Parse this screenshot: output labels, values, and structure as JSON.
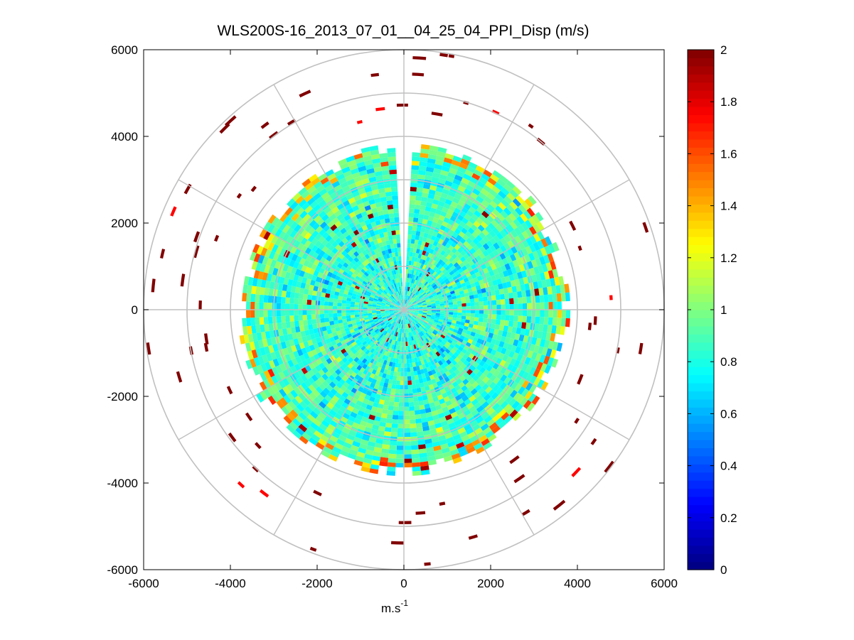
{
  "chart_data": {
    "type": "heatmap",
    "subtype": "polar-ppi",
    "title": "WLS200S-16_2013_07_01__04_25_04_PPI_Disp (m/s)",
    "xlabel": "m.s",
    "xlabel_superscript": "-1",
    "ylabel": "",
    "xlim": [
      -6000,
      6000
    ],
    "ylim": [
      -6000,
      6000
    ],
    "xticks": [
      -6000,
      -4000,
      -2000,
      0,
      2000,
      4000,
      6000
    ],
    "yticks": [
      -6000,
      -4000,
      -2000,
      0,
      2000,
      4000,
      6000
    ],
    "xtick_labels": [
      "-6000",
      "-4000",
      "-2000",
      "0",
      "2000",
      "4000",
      "6000"
    ],
    "ytick_labels": [
      "-6000",
      "-4000",
      "-2000",
      "0",
      "2000",
      "4000",
      "6000"
    ],
    "polar_grid": {
      "ring_radii": [
        1000,
        2000,
        3000,
        4000,
        5000,
        6000
      ],
      "spoke_angles_deg": [
        0,
        30,
        60,
        90,
        120,
        150,
        180,
        210,
        240,
        270,
        300,
        330
      ]
    },
    "data_description": {
      "dense_region_max_range": 3800,
      "range_gate_spacing": 100,
      "azimuth_step_deg": 3,
      "gap_azimuth_deg": [
        -3,
        4
      ],
      "typical_value_range": [
        0.3,
        1.3
      ],
      "sparse_outer_value": 2.0
    },
    "colorbar": {
      "colormap": "jet",
      "clim": [
        0,
        2
      ],
      "ticks": [
        0,
        0.2,
        0.4,
        0.6,
        0.8,
        1,
        1.2,
        1.4,
        1.6,
        1.8,
        2
      ],
      "tick_labels": [
        "0",
        "0.2",
        "0.4",
        "0.6",
        "0.8",
        "1",
        "1.2",
        "1.4",
        "1.6",
        "1.8",
        "2"
      ]
    }
  }
}
